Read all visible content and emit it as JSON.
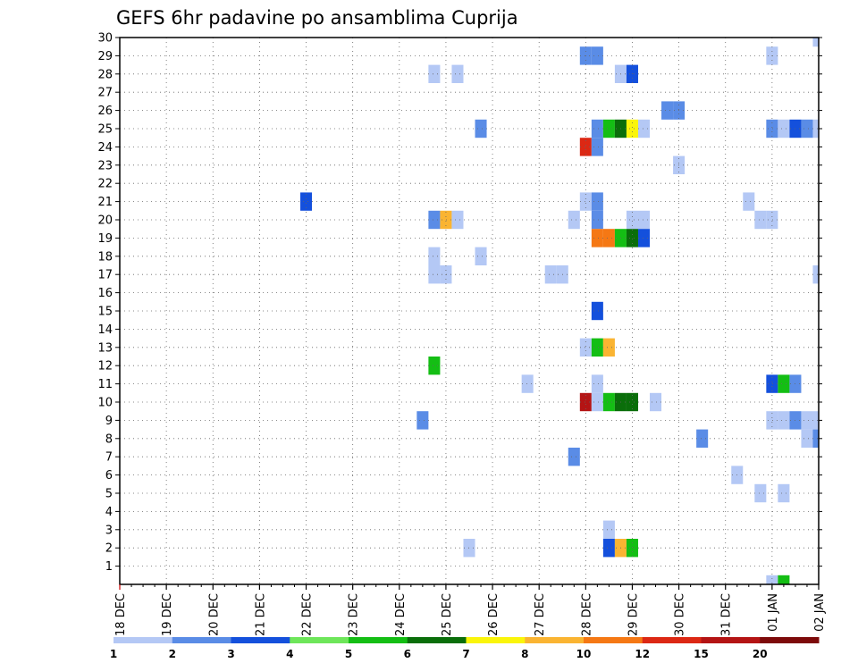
{
  "chart_data": {
    "type": "heatmap",
    "title": "GEFS 6hr padavine po ansamblima Cuprija",
    "xlabel": "",
    "ylabel": "",
    "x_tick_labels": [
      "18 DEC",
      "19 DEC",
      "20 DEC",
      "21 DEC",
      "22 DEC",
      "23 DEC",
      "24 DEC",
      "25 DEC",
      "26 DEC",
      "27 DEC",
      "28 DEC",
      "29 DEC",
      "30 DEC",
      "31 DEC",
      "01 JAN",
      "02 JAN"
    ],
    "x_range_days": [
      0,
      15
    ],
    "y_tick_labels": [
      "1",
      "2",
      "3",
      "4",
      "5",
      "6",
      "7",
      "8",
      "9",
      "10",
      "11",
      "12",
      "13",
      "14",
      "15",
      "16",
      "17",
      "18",
      "19",
      "20",
      "21",
      "22",
      "23",
      "24",
      "25",
      "26",
      "27",
      "28",
      "29",
      "30"
    ],
    "y_range": [
      0,
      30
    ],
    "grid": true,
    "colorbar": {
      "levels": [
        1,
        2,
        3,
        4,
        5,
        6,
        7,
        8,
        10,
        12,
        15,
        20
      ],
      "labels": [
        "1",
        "2",
        "3",
        "4",
        "5",
        "6",
        "7",
        "8",
        "10",
        "12",
        "15",
        "20"
      ],
      "colors": [
        "#b4c8f5",
        "#5a8ce6",
        "#1450dc",
        "#6ee65a",
        "#14be14",
        "#0a6e0a",
        "#faf50a",
        "#fab432",
        "#f57814",
        "#dc2814",
        "#b41414",
        "#7d0a0a"
      ]
    },
    "points_note": "Each point is [day offset from 18 DEC, ensemble member, 6hr precipitation value].",
    "points": [
      [
        15.0,
        30,
        1
      ],
      [
        10.0,
        29,
        2
      ],
      [
        10.25,
        29,
        2
      ],
      [
        14.0,
        29,
        1
      ],
      [
        6.75,
        28,
        1
      ],
      [
        7.25,
        28,
        1
      ],
      [
        10.75,
        28,
        1
      ],
      [
        11.0,
        28,
        3
      ],
      [
        11.75,
        26,
        2
      ],
      [
        12.0,
        26,
        2
      ],
      [
        7.75,
        25,
        2
      ],
      [
        10.25,
        25,
        2
      ],
      [
        10.5,
        25,
        5
      ],
      [
        10.75,
        25,
        6
      ],
      [
        11.0,
        25,
        7
      ],
      [
        11.25,
        25,
        1
      ],
      [
        14.0,
        25,
        2
      ],
      [
        14.25,
        25,
        1
      ],
      [
        14.5,
        25,
        3
      ],
      [
        14.75,
        25,
        2
      ],
      [
        15.0,
        25,
        1
      ],
      [
        10.0,
        24,
        12
      ],
      [
        10.25,
        24,
        2
      ],
      [
        12.0,
        23,
        1
      ],
      [
        4.0,
        21,
        3
      ],
      [
        10.0,
        21,
        1
      ],
      [
        10.25,
        21,
        2
      ],
      [
        13.5,
        21,
        1
      ],
      [
        6.75,
        20,
        2
      ],
      [
        7.0,
        20,
        8
      ],
      [
        7.25,
        20,
        1
      ],
      [
        9.75,
        20,
        1
      ],
      [
        10.25,
        20,
        2
      ],
      [
        11.0,
        20,
        1
      ],
      [
        11.25,
        20,
        1
      ],
      [
        13.75,
        20,
        1
      ],
      [
        14.0,
        20,
        1
      ],
      [
        10.25,
        19,
        10
      ],
      [
        10.5,
        19,
        10
      ],
      [
        10.75,
        19,
        5
      ],
      [
        11.0,
        19,
        6
      ],
      [
        11.25,
        19,
        3
      ],
      [
        6.75,
        18,
        1
      ],
      [
        7.75,
        18,
        1
      ],
      [
        6.75,
        17,
        1
      ],
      [
        7.0,
        17,
        1
      ],
      [
        9.25,
        17,
        1
      ],
      [
        9.5,
        17,
        1
      ],
      [
        15.0,
        17,
        1
      ],
      [
        10.25,
        15,
        3
      ],
      [
        10.0,
        13,
        1
      ],
      [
        10.25,
        13,
        5
      ],
      [
        10.5,
        13,
        8
      ],
      [
        6.75,
        12,
        5
      ],
      [
        8.75,
        11,
        1
      ],
      [
        10.25,
        11,
        1
      ],
      [
        14.0,
        11,
        3
      ],
      [
        14.25,
        11,
        5
      ],
      [
        14.5,
        11,
        2
      ],
      [
        10.0,
        10,
        15
      ],
      [
        10.25,
        10,
        1
      ],
      [
        10.5,
        10,
        5
      ],
      [
        10.75,
        10,
        6
      ],
      [
        11.0,
        10,
        6
      ],
      [
        11.5,
        10,
        1
      ],
      [
        6.5,
        9,
        2
      ],
      [
        14.0,
        9,
        1
      ],
      [
        14.25,
        9,
        1
      ],
      [
        14.5,
        9,
        2
      ],
      [
        14.75,
        9,
        1
      ],
      [
        15.0,
        9,
        1
      ],
      [
        12.5,
        8,
        2
      ],
      [
        14.75,
        8,
        1
      ],
      [
        15.0,
        8,
        2
      ],
      [
        9.75,
        7,
        2
      ],
      [
        13.25,
        6,
        1
      ],
      [
        13.75,
        5,
        1
      ],
      [
        14.25,
        5,
        1
      ],
      [
        10.5,
        3,
        1
      ],
      [
        7.5,
        2,
        1
      ],
      [
        10.5,
        2,
        3
      ],
      [
        10.75,
        2,
        8
      ],
      [
        11.0,
        2,
        5
      ],
      [
        14.0,
        0,
        1
      ],
      [
        14.25,
        0,
        5
      ]
    ]
  }
}
